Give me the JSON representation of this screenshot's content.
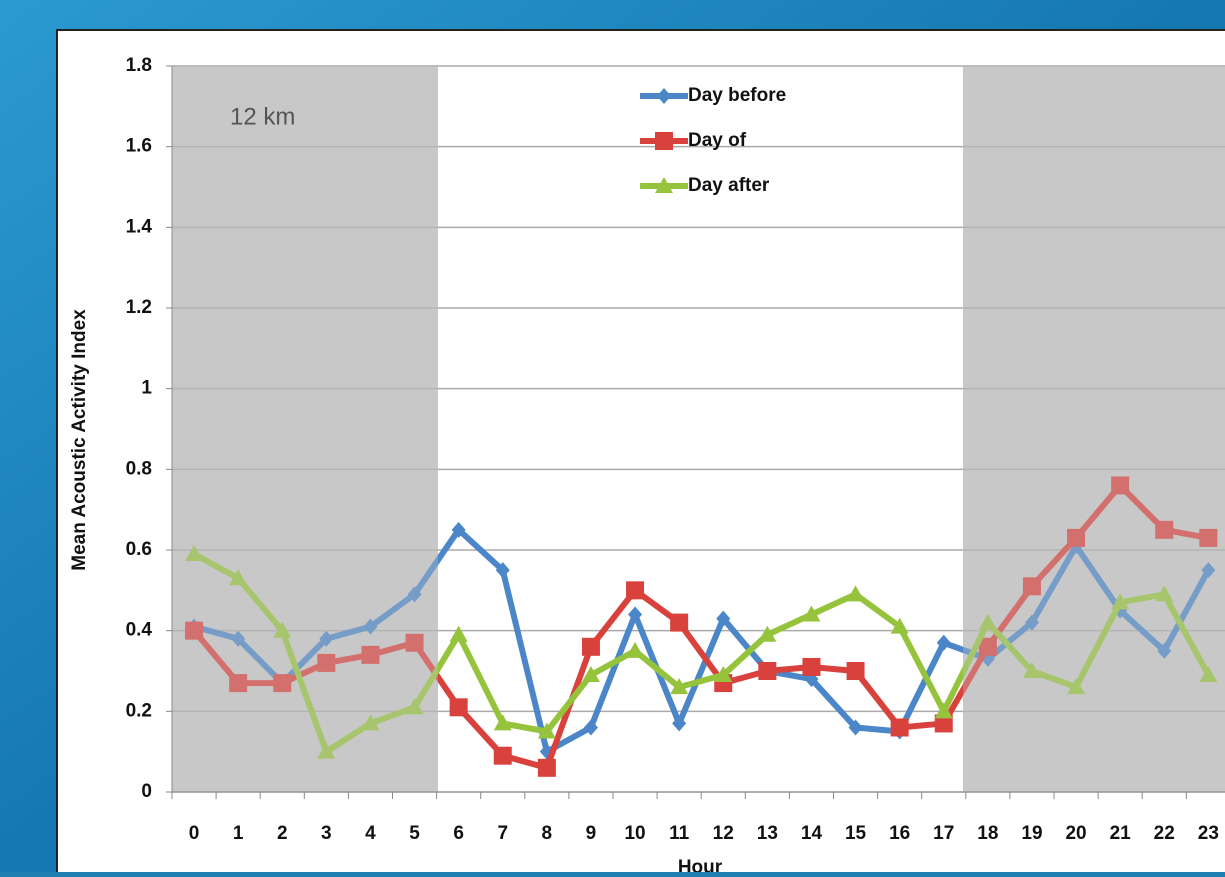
{
  "chart_data": {
    "type": "line",
    "annotation": "12 km",
    "y_label": "Mean Acoustic Activity Index",
    "x_label": "Hour",
    "categories": [
      "0",
      "1",
      "2",
      "3",
      "4",
      "5",
      "6",
      "7",
      "8",
      "9",
      "10",
      "11",
      "12",
      "13",
      "14",
      "15",
      "16",
      "17",
      "18",
      "19",
      "20",
      "21",
      "22",
      "23"
    ],
    "series": [
      {
        "name": "Day before",
        "color": "#4a86c8",
        "marker": "diamond",
        "values": [
          0.41,
          0.38,
          0.27,
          0.38,
          0.41,
          0.49,
          0.65,
          0.55,
          0.1,
          0.16,
          0.44,
          0.17,
          0.43,
          0.3,
          0.28,
          0.16,
          0.15,
          0.37,
          0.33,
          0.42,
          0.61,
          0.45,
          0.35,
          0.55
        ]
      },
      {
        "name": "Day of",
        "color": "#d9413d",
        "marker": "square",
        "values": [
          0.4,
          0.27,
          0.27,
          0.32,
          0.34,
          0.37,
          0.21,
          0.09,
          0.06,
          0.36,
          0.5,
          0.42,
          0.27,
          0.3,
          0.31,
          0.3,
          0.16,
          0.17,
          0.36,
          0.51,
          0.63,
          0.76,
          0.65,
          0.63
        ]
      },
      {
        "name": "Day after",
        "color": "#95c43c",
        "marker": "triangle",
        "values": [
          0.59,
          0.53,
          0.4,
          0.1,
          0.17,
          0.21,
          0.39,
          0.17,
          0.15,
          0.29,
          0.35,
          0.26,
          0.29,
          0.39,
          0.44,
          0.49,
          0.41,
          0.2,
          0.42,
          0.3,
          0.26,
          0.47,
          0.49,
          0.29
        ]
      }
    ],
    "ylim": [
      0,
      1.8
    ],
    "yticks": [
      0,
      0.2,
      0.4,
      0.6,
      0.8,
      1,
      1.2,
      1.4,
      1.6,
      1.8
    ],
    "grid": true
  }
}
